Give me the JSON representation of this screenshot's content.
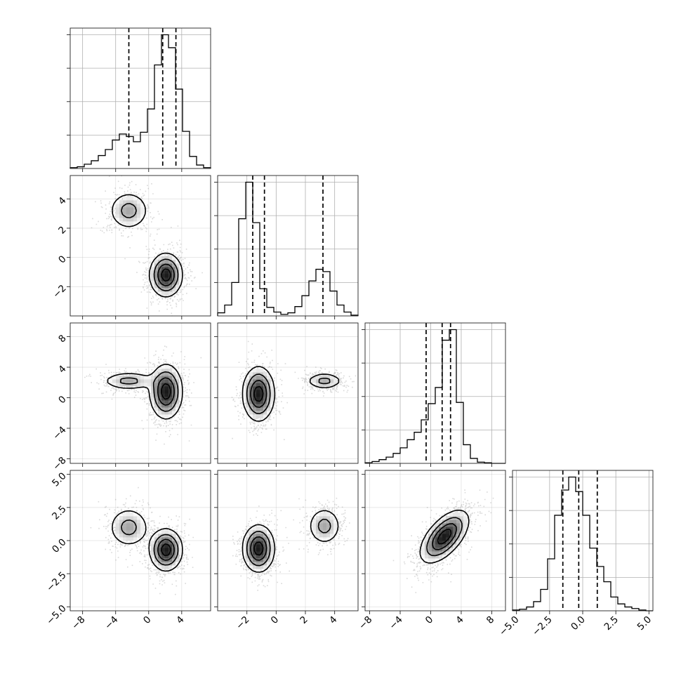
{
  "chart_data": {
    "type": "corner",
    "parameters": 4,
    "grid": true,
    "ranges": [
      [
        -9.5,
        7.5
      ],
      [
        -4.0,
        5.6
      ],
      [
        -8.6,
        9.8
      ],
      [
        -5.3,
        5.3
      ]
    ],
    "tick_values": [
      [
        -8,
        -4,
        0,
        4
      ],
      [
        -2,
        0,
        2,
        4
      ],
      [
        -8,
        -4,
        0,
        4,
        8
      ],
      [
        -5.0,
        -2.5,
        0.0,
        2.5,
        5.0
      ]
    ],
    "tick_labels": [
      [
        "−8",
        "−4",
        "0",
        "4"
      ],
      [
        "−2",
        "0",
        "2",
        "4"
      ],
      [
        "−8",
        "−4",
        "0",
        "4",
        "8"
      ],
      [
        "−5.0",
        "−2.5",
        "0.0",
        "2.5",
        "5.0"
      ]
    ],
    "histograms": [
      {
        "param": 0,
        "bin_edges": [
          -9.5,
          -8.65,
          -7.8,
          -6.95,
          -6.1,
          -5.25,
          -4.4,
          -3.55,
          -2.7,
          -1.85,
          -1.0,
          -0.15,
          0.7,
          1.55,
          2.4,
          3.25,
          4.1,
          4.95,
          5.8,
          6.65,
          7.5
        ],
        "counts": [
          1,
          2,
          5,
          9,
          15,
          22,
          33,
          40,
          37,
          31,
          42,
          69,
          120,
          155,
          140,
          92,
          43,
          14,
          4,
          1
        ],
        "quantiles": [
          -2.4,
          1.7,
          3.3
        ]
      },
      {
        "param": 1,
        "bin_edges": [
          -4.0,
          -3.52,
          -3.04,
          -2.56,
          -2.08,
          -1.6,
          -1.12,
          -0.64,
          -0.16,
          0.32,
          0.8,
          1.28,
          1.76,
          2.24,
          2.72,
          3.2,
          3.68,
          4.16,
          4.64,
          5.12,
          5.6
        ],
        "counts": [
          4,
          14,
          43,
          125,
          172,
          120,
          35,
          11,
          5,
          2,
          4,
          12,
          26,
          45,
          60,
          57,
          32,
          14,
          5,
          1
        ],
        "quantiles": [
          -1.6,
          -0.8,
          3.2
        ]
      },
      {
        "param": 2,
        "bin_edges": [
          -8.6,
          -7.68,
          -6.76,
          -5.84,
          -4.92,
          -4.0,
          -3.08,
          -2.16,
          -1.24,
          -0.32,
          0.6,
          1.52,
          2.44,
          3.36,
          4.28,
          5.2,
          6.12,
          7.04,
          7.96,
          8.88,
          9.8
        ],
        "counts": [
          1,
          3,
          6,
          10,
          16,
          25,
          38,
          50,
          70,
          96,
          122,
          198,
          215,
          98,
          30,
          8,
          2,
          1,
          0,
          0
        ],
        "quantiles": [
          -0.6,
          1.5,
          2.6
        ]
      },
      {
        "param": 3,
        "bin_edges": [
          -5.3,
          -4.77,
          -4.24,
          -3.71,
          -3.18,
          -2.65,
          -2.12,
          -1.59,
          -1.06,
          -0.53,
          0.0,
          0.53,
          1.06,
          1.59,
          2.12,
          2.65,
          3.18,
          3.71,
          4.24,
          4.77,
          5.3
        ],
        "counts": [
          1,
          2,
          5,
          12,
          28,
          68,
          125,
          158,
          175,
          156,
          125,
          82,
          58,
          38,
          18,
          9,
          5,
          3,
          1,
          0
        ],
        "quantiles": [
          -1.5,
          -0.3,
          1.1
        ]
      }
    ],
    "scatter_panels": [
      {
        "x_param": 0,
        "y_param": 1,
        "modes": [
          {
            "center": [
              -2.4,
              3.2
            ],
            "sd": [
              1.3,
              0.7
            ],
            "rho": 0.0,
            "weight": 1.0
          },
          {
            "center": [
              2.1,
              -1.2
            ],
            "sd": [
              1.0,
              0.75
            ],
            "rho": 0.0,
            "weight": 2.2
          }
        ]
      },
      {
        "x_param": 0,
        "y_param": 2,
        "modes": [
          {
            "center": [
              -2.4,
              2.2
            ],
            "sd": [
              1.7,
              0.6
            ],
            "rho": 0.0,
            "weight": 1.0
          },
          {
            "center": [
              2.1,
              0.8
            ],
            "sd": [
              1.0,
              1.8
            ],
            "rho": 0.0,
            "weight": 2.2
          }
        ]
      },
      {
        "x_param": 0,
        "y_param": 3,
        "modes": [
          {
            "center": [
              -2.4,
              1.0
            ],
            "sd": [
              1.3,
              0.8
            ],
            "rho": 0.0,
            "weight": 1.0
          },
          {
            "center": [
              2.1,
              -0.7
            ],
            "sd": [
              1.0,
              0.8
            ],
            "rho": 0.0,
            "weight": 2.2
          }
        ]
      },
      {
        "x_param": 1,
        "y_param": 2,
        "modes": [
          {
            "center": [
              -1.2,
              0.5
            ],
            "sd": [
              0.55,
              1.8
            ],
            "rho": 0.0,
            "weight": 2.2
          },
          {
            "center": [
              3.3,
              2.2
            ],
            "sd": [
              0.65,
              0.55
            ],
            "rho": 0.0,
            "weight": 1.0
          }
        ]
      },
      {
        "x_param": 1,
        "y_param": 3,
        "modes": [
          {
            "center": [
              -1.2,
              -0.6
            ],
            "sd": [
              0.55,
              0.9
            ],
            "rho": 0.0,
            "weight": 2.2
          },
          {
            "center": [
              3.3,
              1.1
            ],
            "sd": [
              0.6,
              0.75
            ],
            "rho": 0.0,
            "weight": 1.0
          }
        ]
      },
      {
        "x_param": 2,
        "y_param": 3,
        "modes": [
          {
            "center": [
              1.8,
              0.3
            ],
            "sd": [
              1.6,
              1.0
            ],
            "rho": 0.6,
            "weight": 1.0
          }
        ]
      }
    ]
  }
}
